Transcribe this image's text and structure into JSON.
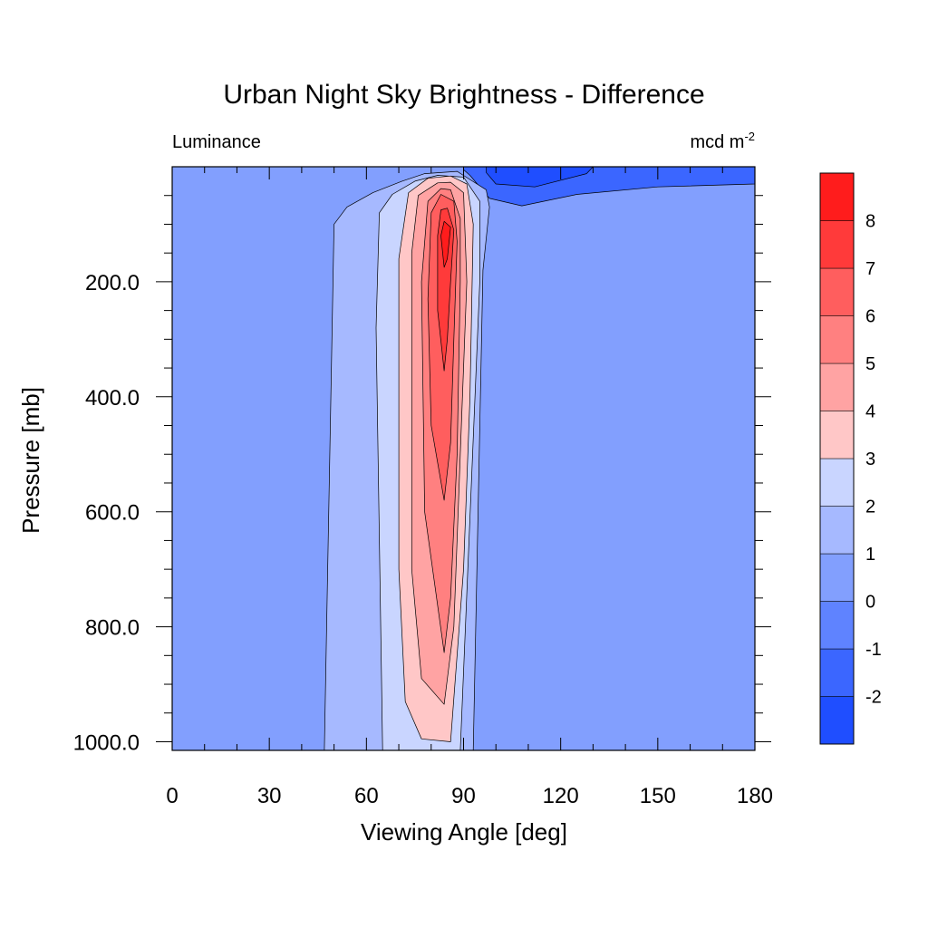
{
  "chart_data": {
    "type": "heatmap",
    "title": "Urban Night Sky Brightness - Difference",
    "left_subtitle": "Luminance",
    "right_subtitle_base": "mcd m",
    "right_subtitle_exp": "-2",
    "xlabel": "Viewing Angle [deg]",
    "ylabel": "Pressure [mb]",
    "xlim": [
      0,
      180
    ],
    "ylim": [
      0,
      1015
    ],
    "y_reversed": true,
    "x_ticks": [
      0,
      30,
      60,
      90,
      120,
      150,
      180
    ],
    "x_tick_labels": [
      "0",
      "30",
      "60",
      "90",
      "120",
      "150",
      "180"
    ],
    "y_ticks": [
      200,
      400,
      600,
      800,
      1000
    ],
    "y_tick_labels": [
      "200.0",
      "400.0",
      "600.0",
      "800.0",
      "1000.0"
    ],
    "levels": [
      -2,
      -1,
      0,
      1,
      2,
      3,
      4,
      5,
      6,
      7,
      8
    ],
    "level_labels": [
      "-2",
      "-1",
      "0",
      "1",
      "2",
      "3",
      "4",
      "5",
      "6",
      "7",
      "8"
    ],
    "colors": [
      "#1f4eff",
      "#3b66ff",
      "#5f83ff",
      "#829ffe",
      "#a6b9ff",
      "#c9d5ff",
      "#ffc7c7",
      "#ffa3a3",
      "#ff8080",
      "#ff5e5e",
      "#ff3a3a",
      "#ff1c1c"
    ],
    "contours": [
      {
        "band": 1,
        "points": [
          [
            90,
            0
          ],
          [
            180,
            0
          ],
          [
            180,
            30
          ],
          [
            150,
            35
          ],
          [
            125,
            48
          ],
          [
            108,
            68
          ],
          [
            98,
            55
          ],
          [
            92,
            15
          ],
          [
            90,
            5
          ]
        ]
      },
      {
        "band": 0,
        "points": [
          [
            97,
            0
          ],
          [
            130,
            0
          ],
          [
            128,
            12
          ],
          [
            112,
            35
          ],
          [
            100,
            30
          ],
          [
            97,
            10
          ]
        ]
      },
      {
        "band": 4,
        "points": [
          [
            47,
            1015
          ],
          [
            50,
            100
          ],
          [
            54,
            70
          ],
          [
            62,
            45
          ],
          [
            71,
            25
          ],
          [
            78,
            12
          ],
          [
            88,
            8
          ],
          [
            97,
            40
          ],
          [
            98,
            70
          ],
          [
            96,
            180
          ],
          [
            93,
            1015
          ]
        ]
      },
      {
        "band": 5,
        "points": [
          [
            65,
            1015
          ],
          [
            63,
            280
          ],
          [
            64,
            80
          ],
          [
            68,
            48
          ],
          [
            75,
            25
          ],
          [
            82,
            15
          ],
          [
            90,
            18
          ],
          [
            95,
            60
          ],
          [
            95,
            200
          ],
          [
            89,
            1015
          ]
        ]
      },
      {
        "band": 6,
        "points": [
          [
            77,
            995
          ],
          [
            72,
            930
          ],
          [
            70,
            700
          ],
          [
            70,
            160
          ],
          [
            73,
            45
          ],
          [
            79,
            20
          ],
          [
            86,
            16
          ],
          [
            91,
            30
          ],
          [
            93,
            100
          ],
          [
            92,
            400
          ],
          [
            90,
            700
          ],
          [
            86,
            1000
          ]
        ]
      },
      {
        "band": 7,
        "points": [
          [
            84,
            935
          ],
          [
            77,
            890
          ],
          [
            74,
            700
          ],
          [
            74,
            150
          ],
          [
            76,
            50
          ],
          [
            82,
            28
          ],
          [
            86,
            27
          ],
          [
            90,
            45
          ],
          [
            91,
            200
          ],
          [
            89,
            500
          ],
          [
            87,
            800
          ]
        ]
      },
      {
        "band": 8,
        "points": [
          [
            84,
            845
          ],
          [
            78,
            600
          ],
          [
            77,
            200
          ],
          [
            79,
            60
          ],
          [
            83,
            38
          ],
          [
            86,
            40
          ],
          [
            89,
            90
          ],
          [
            89,
            200
          ],
          [
            88,
            500
          ],
          [
            86,
            750
          ]
        ]
      },
      {
        "band": 9,
        "points": [
          [
            84,
            580
          ],
          [
            80,
            450
          ],
          [
            79,
            230
          ],
          [
            80,
            80
          ],
          [
            83,
            48
          ],
          [
            87,
            60
          ],
          [
            88,
            130
          ],
          [
            87,
            300
          ],
          [
            86,
            480
          ]
        ]
      },
      {
        "band": 10,
        "points": [
          [
            84,
            355
          ],
          [
            82,
            250
          ],
          [
            82,
            120
          ],
          [
            83,
            75
          ],
          [
            85,
            72
          ],
          [
            87,
            110
          ],
          [
            86,
            200
          ],
          [
            85,
            300
          ]
        ]
      },
      {
        "band": 11,
        "points": [
          [
            84,
            175
          ],
          [
            83,
            120
          ],
          [
            84,
            95
          ],
          [
            86,
            105
          ],
          [
            85,
            160
          ]
        ]
      }
    ]
  }
}
